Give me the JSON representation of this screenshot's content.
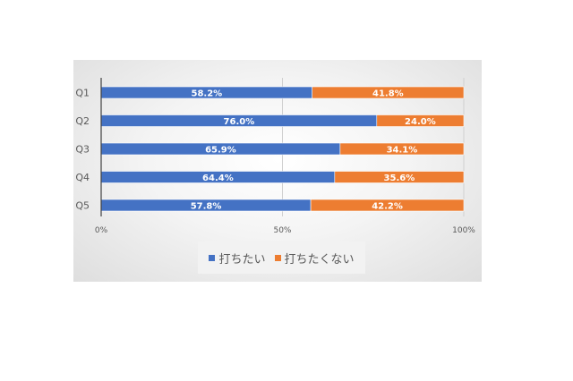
{
  "chart_data": {
    "type": "bar",
    "orientation": "horizontal",
    "stacked": "percent",
    "categories": [
      "Q1",
      "Q2",
      "Q3",
      "Q4",
      "Q5"
    ],
    "series": [
      {
        "name": "打ちたい",
        "values": [
          58.2,
          76.0,
          65.9,
          64.4,
          57.8
        ],
        "color": "#4472C4"
      },
      {
        "name": "打ちたくない",
        "values": [
          41.8,
          24.0,
          34.1,
          35.6,
          42.2
        ],
        "color": "#ED7D31"
      }
    ],
    "data_labels": [
      [
        "58.2%",
        "76.0%",
        "65.9%",
        "64.4%",
        "57.8%"
      ],
      [
        "41.8%",
        "24.0%",
        "34.1%",
        "35.6%",
        "42.2%"
      ]
    ],
    "xlim": [
      0,
      100
    ],
    "xticks": [
      "0%",
      "50%",
      "100%"
    ],
    "grid": true,
    "legend_position": "bottom"
  }
}
